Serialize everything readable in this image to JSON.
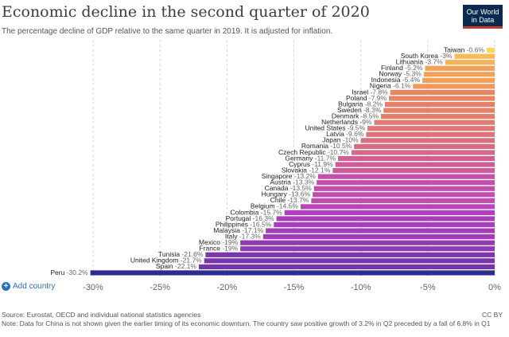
{
  "header": {
    "title": "Economic decline in the second quarter of 2020",
    "subtitle": "The percentage decline of GDP relative to the same quarter in 2019. It is adjusted for inflation."
  },
  "logo": {
    "line1": "Our World",
    "line2": "in Data"
  },
  "controls": {
    "add_country_label": "Add country"
  },
  "footer": {
    "source": "Source: Eurostat, OECD and individual national statistics agencies",
    "note": "Note: Data for China is not shown given the earlier timing of its economic downturn. The country saw positive growth of 3.2% in Q2 preceded by a fall of 6.8% in Q1",
    "license": "CC BY"
  },
  "colors": {
    "low": "#2e2a8f",
    "mid": "#b63fc0",
    "high_mid": "#ef8d58",
    "high": "#fce057"
  },
  "chart_data": {
    "type": "bar",
    "orientation": "horizontal",
    "xlim": [
      -30,
      0
    ],
    "grid": true,
    "tick_labels": [
      "-30%",
      "-25%",
      "-20%",
      "-15%",
      "-10%",
      "-5%",
      "0%"
    ],
    "tick_values": [
      -30,
      -25,
      -20,
      -15,
      -10,
      -5,
      0
    ],
    "categories": [
      "Taiwan",
      "South Korea",
      "Lithuania",
      "Finland",
      "Norway",
      "Indonesia",
      "Nigeria",
      "Israel",
      "Poland",
      "Bulgaria",
      "Sweden",
      "Denmark",
      "Netherlands",
      "United States",
      "Latvia",
      "Japan",
      "Romania",
      "Czech Republic",
      "Germany",
      "Cyprus",
      "Slovakia",
      "Singapore",
      "Austria",
      "Canada",
      "Hungary",
      "Chile",
      "Belgium",
      "Colombia",
      "Portugal",
      "Philippines",
      "Malaysia",
      "Italy",
      "Mexico",
      "France",
      "Tunisia",
      "United Kingdom",
      "Spain",
      "Peru"
    ],
    "values": [
      -0.6,
      -3,
      -3.7,
      -5.2,
      -5.3,
      -5.4,
      -6.1,
      -7.8,
      -7.9,
      -8.2,
      -8.3,
      -8.5,
      -9,
      -9.5,
      -9.6,
      -10,
      -10.5,
      -10.7,
      -11.7,
      -11.9,
      -12.1,
      -13.2,
      -13.3,
      -13.5,
      -13.6,
      -13.7,
      -14.5,
      -15.7,
      -16.3,
      -16.5,
      -17.1,
      -17.3,
      -19,
      -19,
      -21.6,
      -21.7,
      -22.1,
      -30.2
    ],
    "value_labels": [
      "-0.6%",
      "-3%",
      "-3.7%",
      "-5.2%",
      "-5.3%",
      "-5.4%",
      "-6.1%",
      "-7.8%",
      "-7.9%",
      "-8.2%",
      "-8.3%",
      "-8.5%",
      "-9%",
      "-9.5%",
      "-9.6%",
      "-10%",
      "-10.5%",
      "-10.7%",
      "-11.7%",
      "-11.9%",
      "-12.1%",
      "-13.2%",
      "-13.3%",
      "-13.5%",
      "-13.6%",
      "-13.7%",
      "-14.5%",
      "-15.7%",
      "-16.3%",
      "-16.5%",
      "-17.1%",
      "-17.3%",
      "-19%",
      "-19%",
      "-21.6%",
      "-21.7%",
      "-22.1%",
      "-30.2%"
    ]
  }
}
